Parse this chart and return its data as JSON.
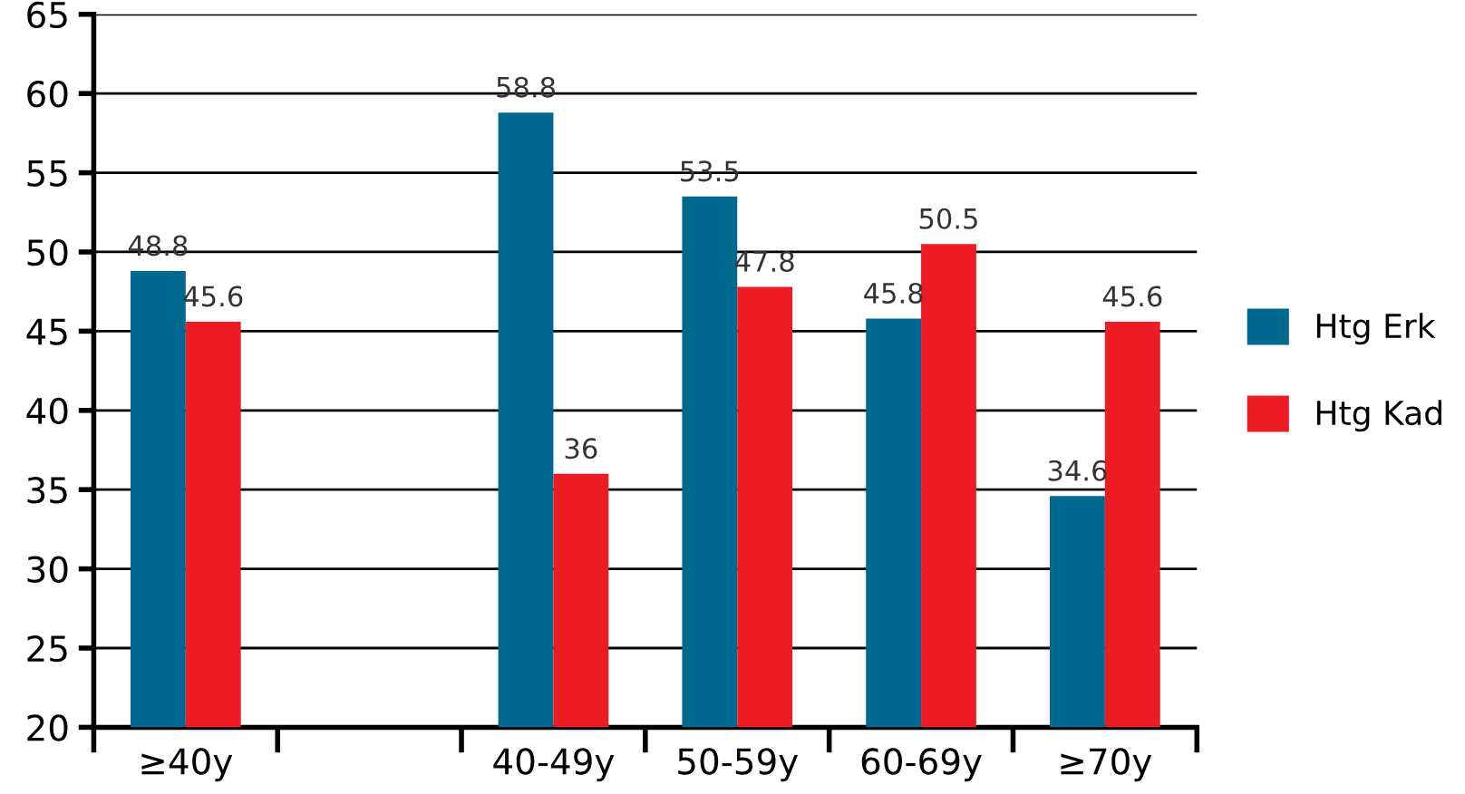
{
  "chart_data": {
    "type": "bar",
    "categories": [
      "≥40y",
      null,
      "40-49y",
      "50-59y",
      "60-69y",
      "≥70y"
    ],
    "series": [
      {
        "name": "Htg Erk",
        "color": "#006990",
        "values": [
          48.8,
          null,
          58.8,
          53.5,
          45.8,
          34.6
        ]
      },
      {
        "name": "Htg Kad",
        "color": "#ed1c24",
        "values": [
          45.6,
          null,
          36,
          47.8,
          50.5,
          45.6
        ]
      }
    ],
    "ylim": [
      20,
      65
    ],
    "yticks": [
      20,
      25,
      30,
      35,
      40,
      45,
      50,
      55,
      60,
      65
    ],
    "grid": "y",
    "legend": "right",
    "data_labels": true
  }
}
